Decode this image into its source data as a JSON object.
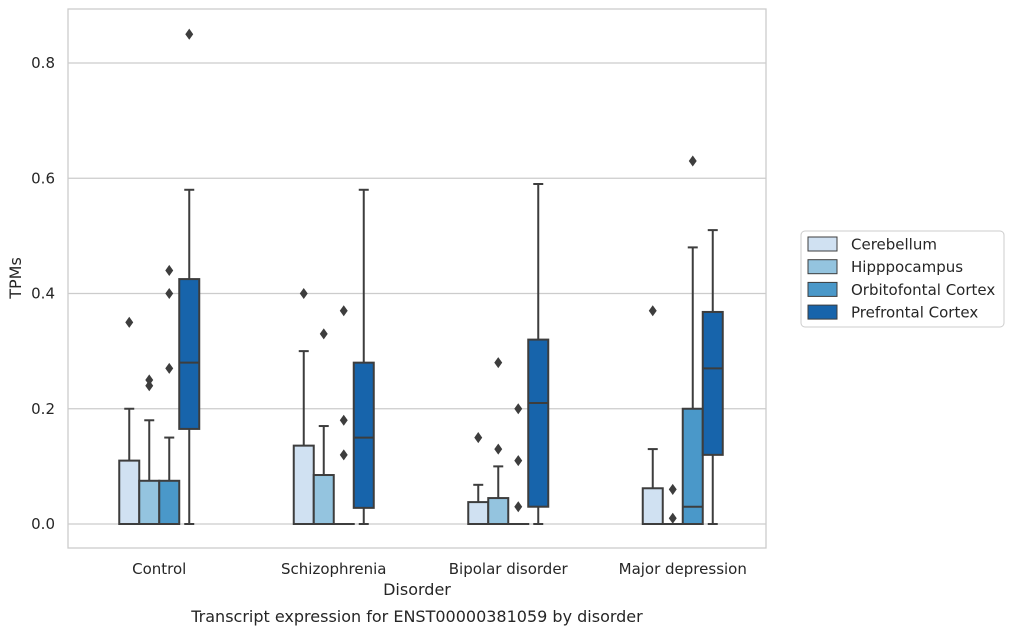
{
  "caption": "Transcript expression for ENST00000381059 by disorder",
  "chart_data": {
    "type": "box",
    "xlabel": "Disorder",
    "ylabel": "TPMs",
    "ylim": [
      -0.04,
      0.895
    ],
    "yticks": [
      "0.0",
      "0.2",
      "0.4",
      "0.6",
      "0.8"
    ],
    "grid": true,
    "legend_position": "right",
    "categories": [
      "Control",
      "Schizophrenia",
      "Bipolar disorder",
      "Major depression"
    ],
    "series": [
      {
        "name": "Cerebellum",
        "color": "#d0e1f2",
        "boxes": [
          {
            "min": 0.0,
            "q1": 0.0,
            "median": 0.0,
            "q3": 0.11,
            "max": 0.2,
            "outliers": [
              0.35
            ]
          },
          {
            "min": 0.0,
            "q1": 0.0,
            "median": 0.0,
            "q3": 0.136,
            "max": 0.3,
            "outliers": [
              0.4
            ]
          },
          {
            "min": 0.0,
            "q1": 0.0,
            "median": 0.0,
            "q3": 0.038,
            "max": 0.068,
            "outliers": [
              0.15
            ]
          },
          {
            "min": 0.0,
            "q1": 0.0,
            "median": 0.0,
            "q3": 0.062,
            "max": 0.13,
            "outliers": [
              0.37
            ]
          }
        ]
      },
      {
        "name": "Hipppocampus",
        "color": "#94c4df",
        "boxes": [
          {
            "min": 0.0,
            "q1": 0.0,
            "median": 0.0,
            "q3": 0.075,
            "max": 0.18,
            "outliers": [
              0.24,
              0.25
            ]
          },
          {
            "min": 0.0,
            "q1": 0.0,
            "median": 0.0,
            "q3": 0.085,
            "max": 0.17,
            "outliers": [
              0.33
            ]
          },
          {
            "min": 0.0,
            "q1": 0.0,
            "median": 0.0,
            "q3": 0.045,
            "max": 0.1,
            "outliers": [
              0.13,
              0.28
            ]
          },
          {
            "min": 0.0,
            "q1": 0.0,
            "median": 0.0,
            "q3": 0.0,
            "max": 0.0,
            "outliers": [
              0.01,
              0.06
            ]
          }
        ]
      },
      {
        "name": "Orbitofontal Cortex",
        "color": "#4a98c9",
        "boxes": [
          {
            "min": 0.0,
            "q1": 0.0,
            "median": 0.0,
            "q3": 0.075,
            "max": 0.15,
            "outliers": [
              0.27,
              0.4,
              0.44
            ]
          },
          {
            "min": 0.0,
            "q1": 0.0,
            "median": 0.0,
            "q3": 0.0,
            "max": 0.0,
            "outliers": [
              0.12,
              0.18,
              0.37
            ]
          },
          {
            "min": 0.0,
            "q1": 0.0,
            "median": 0.0,
            "q3": 0.0,
            "max": 0.0,
            "outliers": [
              0.03,
              0.11,
              0.2
            ]
          },
          {
            "min": 0.0,
            "q1": 0.0,
            "median": 0.03,
            "q3": 0.2,
            "max": 0.48,
            "outliers": [
              0.63
            ]
          }
        ]
      },
      {
        "name": "Prefrontal Cortex",
        "color": "#1764ab",
        "boxes": [
          {
            "min": 0.0,
            "q1": 0.165,
            "median": 0.28,
            "q3": 0.425,
            "max": 0.58,
            "outliers": [
              0.85
            ]
          },
          {
            "min": 0.0,
            "q1": 0.028,
            "median": 0.15,
            "q3": 0.28,
            "max": 0.58,
            "outliers": []
          },
          {
            "min": 0.0,
            "q1": 0.03,
            "median": 0.21,
            "q3": 0.32,
            "max": 0.59,
            "outliers": []
          },
          {
            "min": 0.0,
            "q1": 0.12,
            "median": 0.27,
            "q3": 0.368,
            "max": 0.51,
            "outliers": []
          }
        ]
      }
    ]
  }
}
